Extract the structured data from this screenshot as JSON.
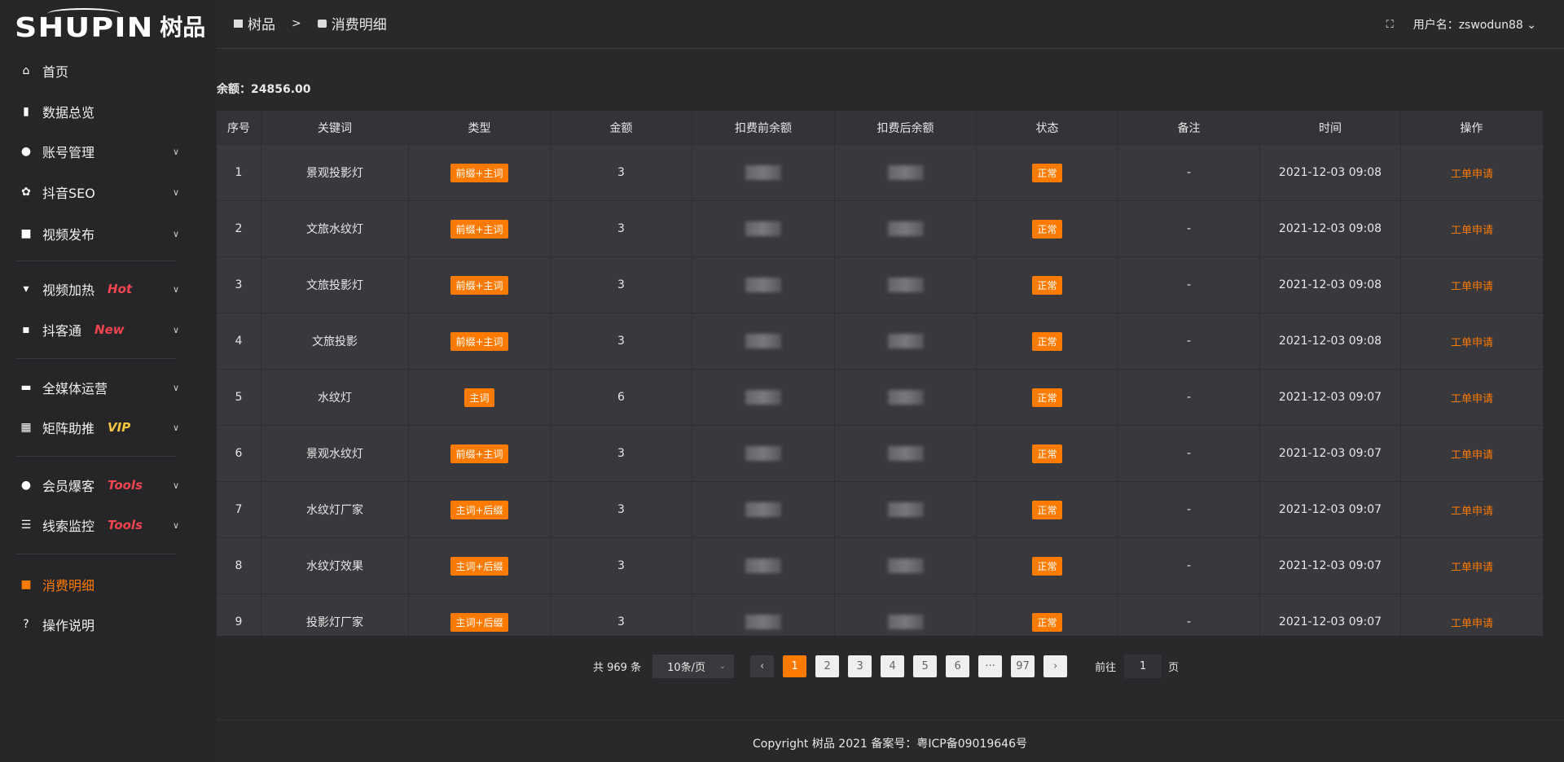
{
  "logo": {
    "en": "SHUPIN",
    "cn": "树品"
  },
  "sidebar": {
    "items": [
      {
        "label": "首页",
        "icon": "home-icon",
        "glyph": "⌂"
      },
      {
        "label": "数据总览",
        "icon": "bar-chart-icon",
        "glyph": "▮"
      },
      {
        "label": "账号管理",
        "icon": "user-icon",
        "glyph": "●",
        "chevron": true
      },
      {
        "label": "抖音SEO",
        "icon": "gear-icon",
        "glyph": "✿",
        "chevron": true
      },
      {
        "label": "视频发布",
        "icon": "camera-icon",
        "glyph": "■",
        "chevron": true
      },
      {
        "label": "视频加热",
        "icon": "flag-icon",
        "glyph": "▾",
        "tag": "Hot",
        "tag_color": "#f0444f",
        "chevron": true
      },
      {
        "label": "抖客通",
        "icon": "chat-icon",
        "glyph": "▪",
        "tag": "New",
        "tag_color": "#f0444f",
        "chevron": true
      },
      {
        "label": "全媒体运营",
        "icon": "monitor-icon",
        "glyph": "▬",
        "chevron": true
      },
      {
        "label": "矩阵助推",
        "icon": "grid-icon",
        "glyph": "▦",
        "tag": "VIP",
        "tag_color": "#f5c542",
        "chevron": true
      },
      {
        "label": "会员爆客",
        "icon": "user-icon",
        "glyph": "●",
        "tag": "Tools",
        "tag_color": "#f0444f",
        "chevron": true
      },
      {
        "label": "线索监控",
        "icon": "sliders-icon",
        "glyph": "☰",
        "tag": "Tools",
        "tag_color": "#f0444f",
        "chevron": true
      },
      {
        "label": "消费明细",
        "icon": "wallet-icon",
        "glyph": "■",
        "active": true
      },
      {
        "label": "操作说明",
        "icon": "help-icon",
        "glyph": "?"
      }
    ]
  },
  "header": {
    "breadcrumb": [
      "树品",
      "消费明细"
    ],
    "separator": ">",
    "user_label": "用户名：zswodun88"
  },
  "balance": "余额：24856.00",
  "table": {
    "columns": [
      "序号",
      "关键词",
      "类型",
      "金额",
      "扣费前余额",
      "扣费后余额",
      "状态",
      "备注",
      "时间",
      "操作"
    ],
    "rows": [
      {
        "no": "1",
        "kw": "景观投影灯",
        "type": "前缀+主词",
        "amt": "3",
        "status": "正常",
        "note": "-",
        "time": "2021-12-03 09:08",
        "op": "工单申请"
      },
      {
        "no": "2",
        "kw": "文旅水纹灯",
        "type": "前缀+主词",
        "amt": "3",
        "status": "正常",
        "note": "-",
        "time": "2021-12-03 09:08",
        "op": "工单申请"
      },
      {
        "no": "3",
        "kw": "文旅投影灯",
        "type": "前缀+主词",
        "amt": "3",
        "status": "正常",
        "note": "-",
        "time": "2021-12-03 09:08",
        "op": "工单申请"
      },
      {
        "no": "4",
        "kw": "文旅投影",
        "type": "前缀+主词",
        "amt": "3",
        "status": "正常",
        "note": "-",
        "time": "2021-12-03 09:08",
        "op": "工单申请"
      },
      {
        "no": "5",
        "kw": "水纹灯",
        "type": "主词",
        "amt": "6",
        "status": "正常",
        "note": "-",
        "time": "2021-12-03 09:07",
        "op": "工单申请"
      },
      {
        "no": "6",
        "kw": "景观水纹灯",
        "type": "前缀+主词",
        "amt": "3",
        "status": "正常",
        "note": "-",
        "time": "2021-12-03 09:07",
        "op": "工单申请"
      },
      {
        "no": "7",
        "kw": "水纹灯厂家",
        "type": "主词+后缀",
        "amt": "3",
        "status": "正常",
        "note": "-",
        "time": "2021-12-03 09:07",
        "op": "工单申请"
      },
      {
        "no": "8",
        "kw": "水纹灯效果",
        "type": "主词+后缀",
        "amt": "3",
        "status": "正常",
        "note": "-",
        "time": "2021-12-03 09:07",
        "op": "工单申请"
      },
      {
        "no": "9",
        "kw": "投影灯厂家",
        "type": "主词+后缀",
        "amt": "3",
        "status": "正常",
        "note": "-",
        "time": "2021-12-03 09:07",
        "op": "工单申请"
      }
    ]
  },
  "pagination": {
    "total": "共 969 条",
    "page_size": "10条/页",
    "pages": [
      "1",
      "2",
      "3",
      "4",
      "5",
      "6",
      "···",
      "97"
    ],
    "current": "1",
    "goto_label": "前往",
    "goto_value": "1",
    "page_unit": "页"
  },
  "footer": "Copyright 树品 2021 备案号：粤ICP备09019646号",
  "colors": {
    "accent": "#ff7a00"
  }
}
